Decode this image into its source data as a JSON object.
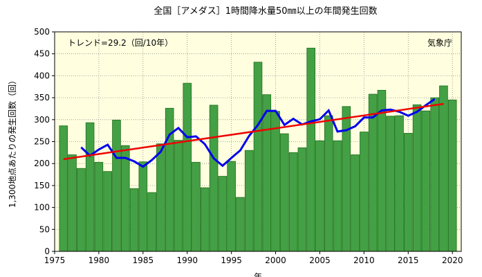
{
  "chart_data": {
    "type": "bar",
    "title": "全国［アメダス］1時間降水量50㎜以上の年間発生回数",
    "ylabel": "1,300地点あたりの発生回数（回）",
    "xlabel": "年",
    "trend_label": "トレンド=29.2（回/10年）",
    "source_label": "気象庁",
    "xlim": [
      1975,
      2021
    ],
    "ylim": [
      0,
      500
    ],
    "x_ticks": [
      1975,
      1980,
      1985,
      1990,
      1995,
      2000,
      2005,
      2010,
      2015,
      2020
    ],
    "y_ticks": [
      0,
      50,
      100,
      150,
      200,
      250,
      300,
      350,
      400,
      450,
      500
    ],
    "grid": true,
    "years": [
      1976,
      1977,
      1978,
      1979,
      1980,
      1981,
      1982,
      1983,
      1984,
      1985,
      1986,
      1987,
      1988,
      1989,
      1990,
      1991,
      1992,
      1993,
      1994,
      1995,
      1996,
      1997,
      1998,
      1999,
      2000,
      2001,
      2002,
      2003,
      2004,
      2005,
      2006,
      2007,
      2008,
      2009,
      2010,
      2011,
      2012,
      2013,
      2014,
      2015,
      2016,
      2017,
      2018,
      2019,
      2020
    ],
    "values": [
      286,
      220,
      189,
      293,
      203,
      182,
      299,
      241,
      143,
      204,
      134,
      245,
      326,
      253,
      383,
      203,
      145,
      333,
      171,
      205,
      123,
      230,
      431,
      357,
      319,
      268,
      225,
      236,
      463,
      252,
      309,
      252,
      330,
      220,
      272,
      358,
      367,
      308,
      309,
      269,
      334,
      320,
      350,
      377,
      345
    ],
    "moving_average": {
      "years": [
        1978,
        1979,
        1980,
        1981,
        1982,
        1983,
        1984,
        1985,
        1986,
        1987,
        1988,
        1989,
        1990,
        1991,
        1992,
        1993,
        1994,
        1995,
        1996,
        1997,
        1998,
        1999,
        2000,
        2001,
        2002,
        2003,
        2004,
        2005,
        2006,
        2007,
        2008,
        2009,
        2010,
        2011,
        2012,
        2013,
        2014,
        2015,
        2016,
        2017,
        2018
      ],
      "values": [
        237,
        218,
        232,
        243,
        213,
        213,
        205,
        193,
        208,
        227,
        266,
        281,
        260,
        262,
        244,
        212,
        195,
        213,
        230,
        263,
        288,
        320,
        320,
        288,
        302,
        289,
        296,
        301,
        321,
        273,
        276,
        285,
        305,
        305,
        321,
        323,
        318,
        309,
        318,
        333,
        347
      ]
    },
    "trend": {
      "start": [
        1976,
        210
      ],
      "end": [
        2019,
        336
      ]
    },
    "colors": {
      "bar": "#44a044",
      "bar_edge": "#1e6e1e",
      "moving_average": "#0000ee",
      "trend": "#ee0000",
      "plot_bg": "#ffffe0"
    }
  }
}
